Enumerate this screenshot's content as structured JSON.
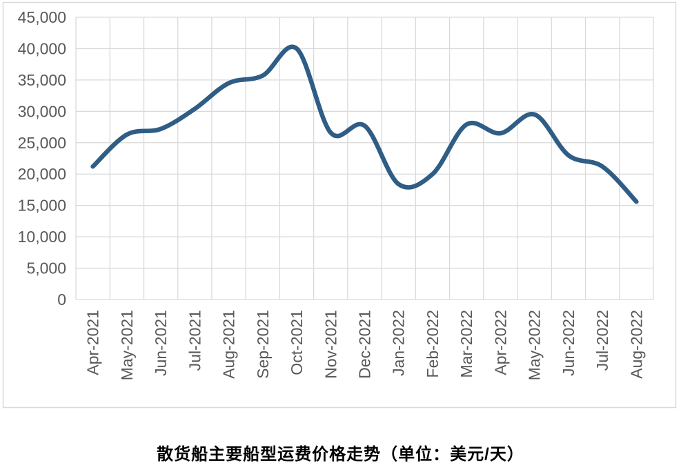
{
  "chart_data": {
    "type": "line",
    "title": "散货船主要船型运费价格走势（单位：美元/天）",
    "categories": [
      "Apr-2021",
      "May-2021",
      "Jun-2021",
      "Jul-2021",
      "Aug-2021",
      "Sep-2021",
      "Oct-2021",
      "Nov-2021",
      "Dec-2021",
      "Jan-2022",
      "Feb-2022",
      "Mar-2022",
      "Apr-2022",
      "May-2022",
      "Jun-2022",
      "Jul-2022",
      "Aug-2022"
    ],
    "values": [
      21200,
      26300,
      27200,
      30400,
      34500,
      35700,
      40000,
      26600,
      27700,
      18400,
      20000,
      27900,
      26500,
      29500,
      23000,
      21200,
      15600
    ],
    "ylim": [
      0,
      45000
    ],
    "ytick_step": 5000,
    "ytick_labels": [
      "45,000",
      "40,000",
      "35,000",
      "30,000",
      "25,000",
      "20,000",
      "15,000",
      "10,000",
      "5,000",
      "0"
    ],
    "xlabel": "",
    "ylabel": "",
    "legend": "none",
    "grid": "both",
    "smooth_line": true,
    "line_color": "#2F5D85",
    "grid_color": "#DADADA",
    "frame_color": "#D9D9D9",
    "label_color": "#595959",
    "title_color": "#000000"
  }
}
